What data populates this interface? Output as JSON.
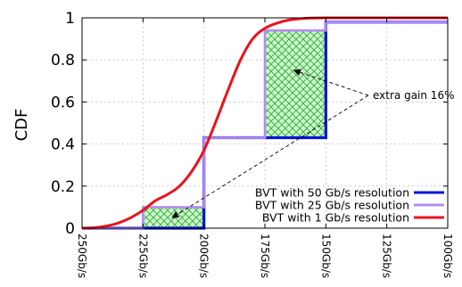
{
  "chart_data": {
    "type": "line",
    "title": "",
    "xlabel": "",
    "ylabel": "CDF",
    "x_reversed": true,
    "xlim": [
      250,
      100
    ],
    "ylim": [
      0,
      1
    ],
    "x_ticks": [
      250,
      225,
      200,
      175,
      150,
      125,
      100
    ],
    "x_tick_labels": [
      "250Gb/s",
      "225Gb/s",
      "200Gb/s",
      "175Gb/s",
      "150Gb/s",
      "125Gb/s",
      "100Gb/s"
    ],
    "y_ticks": [
      0,
      0.2,
      0.4,
      0.6,
      0.8,
      1
    ],
    "y_tick_labels": [
      "0",
      "0.2",
      "0.4",
      "0.6",
      "0.8",
      "1"
    ],
    "grid": true,
    "legend_position": "bottom-right",
    "series": [
      {
        "name": "BVT with 50 Gb/s resolution",
        "color": "#0a14d8",
        "points": [
          [
            250,
            0
          ],
          [
            200,
            0
          ],
          [
            200,
            0.43
          ],
          [
            150,
            0.43
          ],
          [
            150,
            0.98
          ],
          [
            100,
            0.98
          ]
        ]
      },
      {
        "name": "BVT with 25 Gb/s resolution",
        "color": "#b38cf2",
        "points": [
          [
            250,
            0
          ],
          [
            225,
            0
          ],
          [
            225,
            0.1
          ],
          [
            200,
            0.1
          ],
          [
            200,
            0.43
          ],
          [
            175,
            0.43
          ],
          [
            175,
            0.94
          ],
          [
            150,
            0.94
          ],
          [
            150,
            0.98
          ],
          [
            100,
            0.98
          ]
        ]
      },
      {
        "name": "BVT with 1 Gb/s resolution",
        "color": "#e8141c",
        "points": [
          [
            250,
            0
          ],
          [
            245,
            0.002
          ],
          [
            240,
            0.01
          ],
          [
            235,
            0.025
          ],
          [
            230,
            0.05
          ],
          [
            225,
            0.085
          ],
          [
            220,
            0.13
          ],
          [
            215,
            0.16
          ],
          [
            210,
            0.2
          ],
          [
            205,
            0.27
          ],
          [
            200,
            0.37
          ],
          [
            195,
            0.51
          ],
          [
            190,
            0.66
          ],
          [
            185,
            0.8
          ],
          [
            180,
            0.9
          ],
          [
            175,
            0.95
          ],
          [
            170,
            0.975
          ],
          [
            165,
            0.99
          ],
          [
            160,
            0.996
          ],
          [
            150,
            1
          ],
          [
            100,
            1
          ]
        ]
      }
    ],
    "shaded_regions": [
      {
        "x": [
          225,
          200
        ],
        "y": [
          0,
          0.1
        ]
      },
      {
        "x": [
          175,
          150
        ],
        "y": [
          0.43,
          0.94
        ]
      }
    ],
    "annotations": [
      {
        "text": "extra gain 16%",
        "anchor": [
          140,
          0.65
        ],
        "arrow_targets": [
          [
            163,
            0.75
          ],
          [
            213,
            0.05
          ]
        ]
      }
    ]
  }
}
